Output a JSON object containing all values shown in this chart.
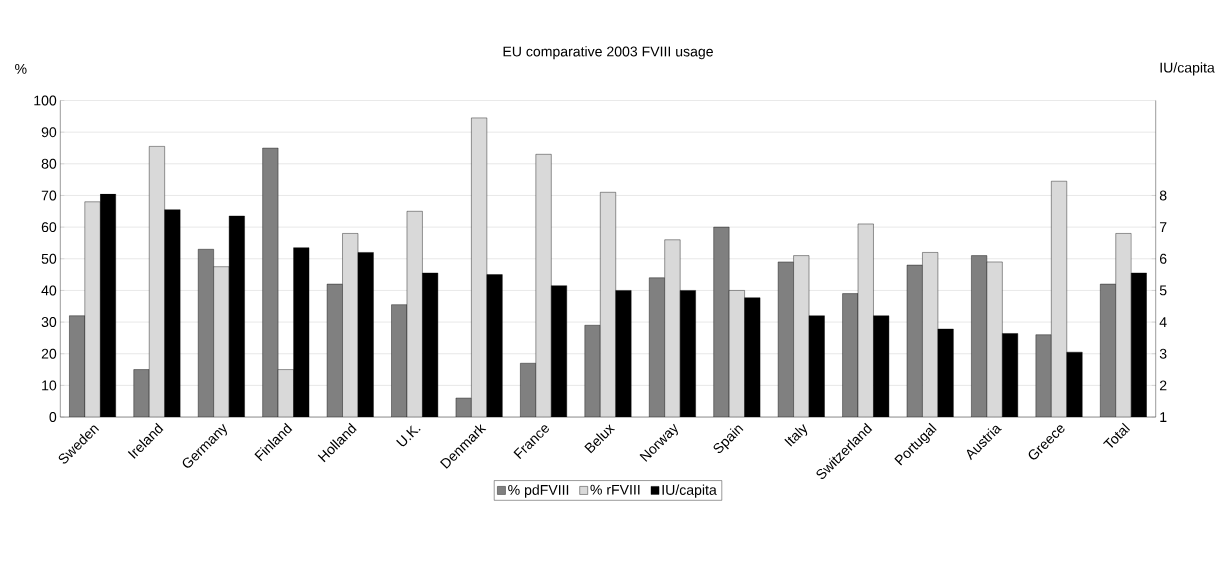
{
  "chart_data": {
    "type": "bar",
    "title": "EU comparative 2003 FVIII usage",
    "ylabel": "%",
    "y2label": "IU/capita",
    "categories": [
      "Sweden",
      "Ireland",
      "Germany",
      "Finland",
      "Holland",
      "U.K.",
      "Denmark",
      "France",
      "Belux",
      "Norway",
      "Spain",
      "Italy",
      "Switzerland",
      "Portugal",
      "Austria",
      "Greece",
      "Total"
    ],
    "series": [
      {
        "name": "% pdFVIII",
        "color": "#808080",
        "values": [
          32,
          15,
          53,
          85,
          42,
          35.5,
          6,
          17,
          29,
          44,
          60,
          49,
          39,
          48,
          51,
          26,
          42
        ]
      },
      {
        "name": "% rFVIII",
        "color": "#d9d9d9",
        "values": [
          68,
          85.5,
          47.5,
          15,
          58,
          65,
          94.5,
          83,
          71,
          56,
          40,
          51,
          61,
          52,
          49,
          74.5,
          58
        ]
      },
      {
        "name": "IU/capita",
        "color": "#000000",
        "axis": "y2",
        "values": [
          8.05,
          7.55,
          7.35,
          6.35,
          6.2,
          5.55,
          5.5,
          5.15,
          5.0,
          5.0,
          4.77,
          4.2,
          4.2,
          3.78,
          3.64,
          3.05,
          5.55
        ]
      }
    ],
    "ylim": [
      0,
      100
    ],
    "yticks": [
      0,
      10,
      20,
      30,
      40,
      50,
      60,
      70,
      80,
      90,
      100
    ],
    "y2lim": [
      1,
      11
    ],
    "y2ticks": [
      1,
      2,
      3,
      4,
      5,
      6,
      7,
      8
    ],
    "grid": "y",
    "legend": "bottom"
  }
}
